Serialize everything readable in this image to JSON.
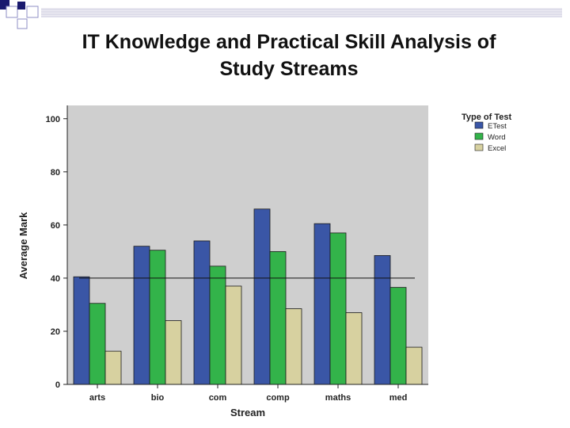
{
  "slide": {
    "title_line1": "IT Knowledge and Practical Skill Analysis of",
    "title_line2": "Study Streams"
  },
  "chart_data": {
    "type": "bar",
    "title": "",
    "xlabel": "Stream",
    "ylabel": "Average Mark",
    "ylim": [
      0,
      105
    ],
    "yticks": [
      0,
      20,
      40,
      60,
      80,
      100
    ],
    "categories": [
      "arts",
      "bio",
      "com",
      "comp",
      "maths",
      "med"
    ],
    "legend": {
      "title": "Type of Test",
      "position": "right"
    },
    "series": [
      {
        "name": "ETest",
        "color": "#3a56a6",
        "values": [
          40.5,
          52,
          54,
          66,
          60.5,
          48.5
        ]
      },
      {
        "name": "Word",
        "color": "#33b34a",
        "values": [
          30.5,
          50.5,
          44.5,
          50,
          57,
          36.5
        ]
      },
      {
        "name": "Excel",
        "color": "#d7d1a0",
        "values": [
          12.5,
          24,
          37,
          28.5,
          27,
          14
        ]
      }
    ],
    "reference_line": 40,
    "grid": false,
    "plot_background": "#cfcfcf"
  }
}
